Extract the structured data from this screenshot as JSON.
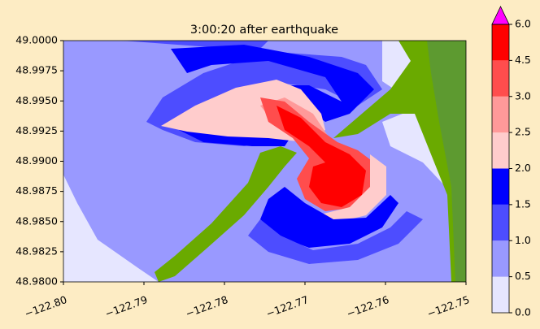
{
  "chart_data": {
    "type": "contour",
    "title": "3:00:20 after earthquake",
    "xlim": [
      -122.8,
      -122.75
    ],
    "ylim": [
      48.98,
      49.0
    ],
    "xticks": [
      {
        "value": -122.8,
        "label": "−122.80"
      },
      {
        "value": -122.79,
        "label": "−122.79"
      },
      {
        "value": -122.78,
        "label": "−122.78"
      },
      {
        "value": -122.77,
        "label": "−122.77"
      },
      {
        "value": -122.76,
        "label": "−122.76"
      },
      {
        "value": -122.75,
        "label": "−122.75"
      }
    ],
    "yticks": [
      {
        "value": 48.98,
        "label": "48.9800"
      },
      {
        "value": 48.9825,
        "label": "48.9825"
      },
      {
        "value": 48.985,
        "label": "48.9850"
      },
      {
        "value": 48.9875,
        "label": "48.9875"
      },
      {
        "value": 48.99,
        "label": "48.9900"
      },
      {
        "value": 48.9925,
        "label": "48.9925"
      },
      {
        "value": 48.995,
        "label": "48.9950"
      },
      {
        "value": 48.9975,
        "label": "48.9975"
      },
      {
        "value": 49.0,
        "label": "49.0000"
      }
    ],
    "colorbar": {
      "levels": [
        {
          "value": 0,
          "label": "0.0"
        },
        {
          "value": 0.5,
          "label": "0.5"
        },
        {
          "value": 1,
          "label": "1.0"
        },
        {
          "value": 1.5,
          "label": "1.5"
        },
        {
          "value": 2,
          "label": "2.0"
        },
        {
          "value": 2.5,
          "label": "2.5"
        },
        {
          "value": 3,
          "label": "3.0"
        },
        {
          "value": 4.5,
          "label": "4.5"
        },
        {
          "value": 6,
          "label": "6.0"
        }
      ],
      "colors": [
        "#e6e6ff",
        "#9999ff",
        "#4d4dff",
        "#0000ff",
        "#ffcccc",
        "#ff9999",
        "#ff4d4d",
        "#ff0000"
      ],
      "extend_color": "#ff00ff"
    }
  }
}
